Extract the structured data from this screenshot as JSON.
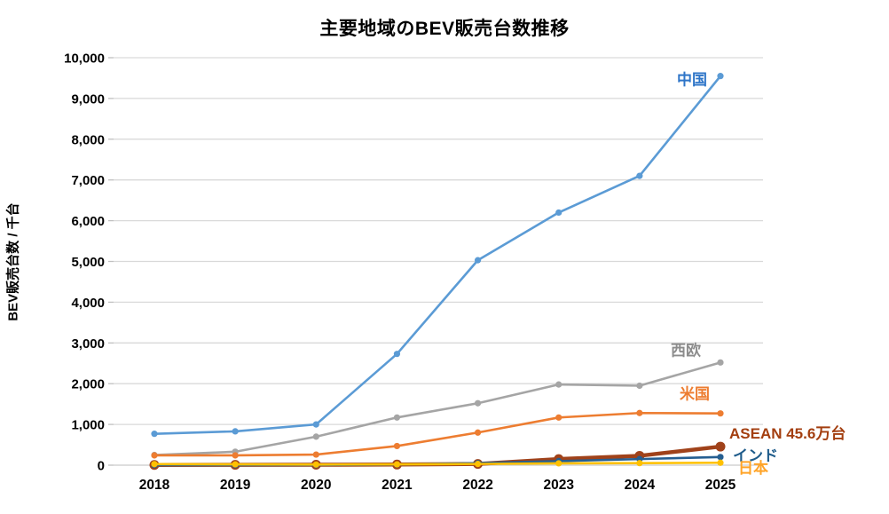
{
  "title": "主要地域のBEV販売台数推移",
  "chart_data": {
    "type": "line",
    "title": "主要地域のBEV販売台数推移",
    "xlabel": "",
    "ylabel": "BEV販売台数 / 千台",
    "x": [
      2018,
      2019,
      2020,
      2021,
      2022,
      2023,
      2024,
      2025
    ],
    "ylim": [
      0,
      10000
    ],
    "ytick_step": 1000,
    "grid": true,
    "legend_position": "direct-labels-on-lines",
    "gridline_color": "#D9D9D9",
    "axis_text_color": "#000000",
    "series": [
      {
        "key": "china",
        "name": "中国",
        "label": "中国",
        "values": [
          770,
          830,
          1000,
          2730,
          5030,
          6200,
          7100,
          9550
        ],
        "color": "#5B9BD5",
        "label_color": "#2E75C8"
      },
      {
        "key": "western-europe",
        "name": "西欧",
        "label": "西欧",
        "values": [
          250,
          330,
          700,
          1170,
          1520,
          1980,
          1950,
          2520
        ],
        "color": "#A5A5A5",
        "label_color": "#8C8C8C"
      },
      {
        "key": "us",
        "name": "米国",
        "label": "米国",
        "values": [
          240,
          240,
          260,
          470,
          800,
          1170,
          1280,
          1270
        ],
        "color": "#ED7D31",
        "label_color": "#ED7D31"
      },
      {
        "key": "asean",
        "name": "ASEAN",
        "label": "ASEAN 45.6万台",
        "annotation": "45.6万台",
        "values": [
          5,
          8,
          10,
          15,
          30,
          150,
          230,
          456
        ],
        "color": "#A0421A",
        "label_color": "#A33E0F"
      },
      {
        "key": "india",
        "name": "インド",
        "label": "インド",
        "values": [
          2,
          2,
          5,
          15,
          50,
          100,
          150,
          200
        ],
        "color": "#255E91",
        "label_color": "#1F5C8B"
      },
      {
        "key": "japan",
        "name": "日本",
        "label": "日本",
        "values": [
          25,
          20,
          15,
          20,
          30,
          45,
          50,
          60
        ],
        "color": "#FFC000",
        "label_color": "#FFA428"
      }
    ]
  }
}
